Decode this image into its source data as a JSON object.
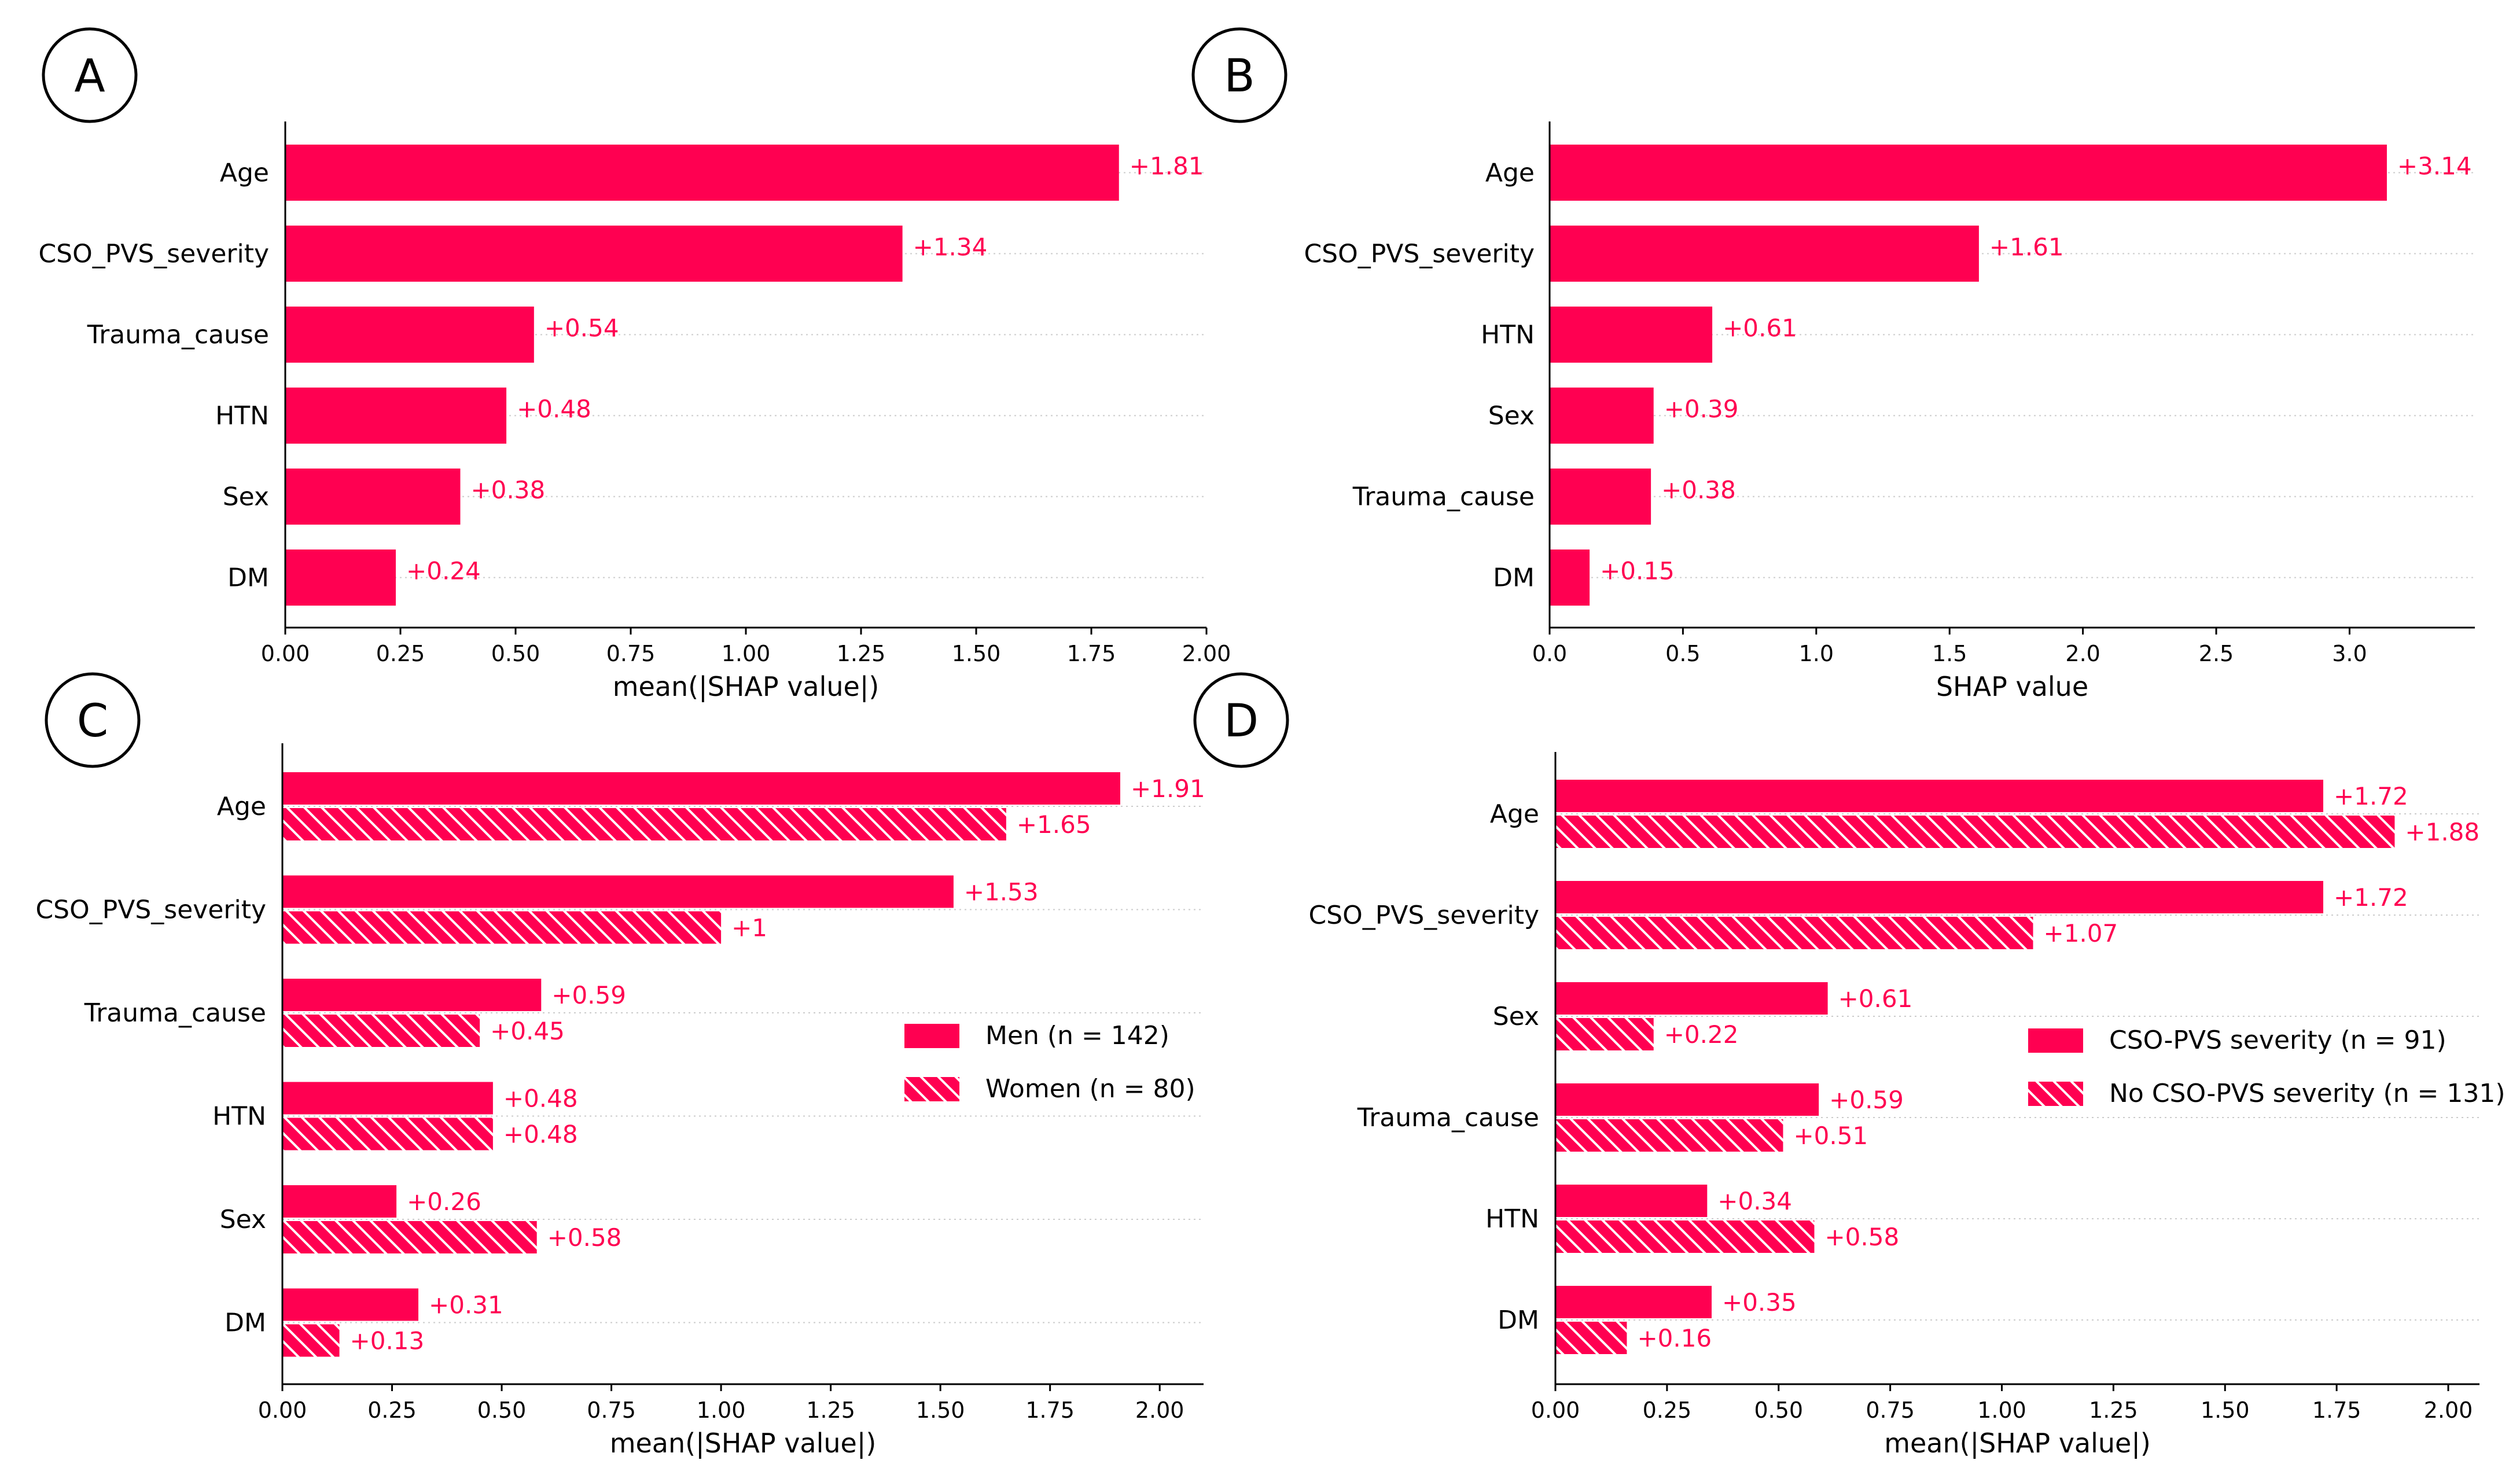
{
  "colors": {
    "bar": "#ff0051",
    "text": "#000000",
    "value_label": "#ff0051",
    "grid": "#cccccc"
  },
  "chart_data": [
    {
      "panel": "A",
      "type": "bar",
      "orientation": "horizontal",
      "categories": [
        "Age",
        "CSO_PVS_severity",
        "Trauma_cause",
        "HTN",
        "Sex",
        "DM"
      ],
      "values": [
        1.81,
        1.34,
        0.54,
        0.48,
        0.38,
        0.24
      ],
      "labels": [
        "+1.81",
        "+1.34",
        "+0.54",
        "+0.48",
        "+0.38",
        "+0.24"
      ],
      "xlabel": "mean(|SHAP value|)",
      "xlim": [
        0,
        2.0
      ],
      "xticks": [
        "0.00",
        "0.25",
        "0.50",
        "0.75",
        "1.00",
        "1.25",
        "1.50",
        "1.75",
        "2.00"
      ],
      "xtick_values": [
        0,
        0.25,
        0.5,
        0.75,
        1.0,
        1.25,
        1.5,
        1.75,
        2.0
      ]
    },
    {
      "panel": "B",
      "type": "bar",
      "orientation": "horizontal",
      "categories": [
        "Age",
        "CSO_PVS_severity",
        "HTN",
        "Sex",
        "Trauma_cause",
        "DM"
      ],
      "values": [
        3.14,
        1.61,
        0.61,
        0.39,
        0.38,
        0.15
      ],
      "labels": [
        "+3.14",
        "+1.61",
        "+0.61",
        "+0.39",
        "+0.38",
        "+0.15"
      ],
      "xlabel": "SHAP value",
      "xlim": [
        0,
        3.47
      ],
      "xticks": [
        "0.0",
        "0.5",
        "1.0",
        "1.5",
        "2.0",
        "2.5",
        "3.0"
      ],
      "xtick_values": [
        0,
        0.5,
        1.0,
        1.5,
        2.0,
        2.5,
        3.0
      ]
    },
    {
      "panel": "C",
      "type": "bar",
      "orientation": "horizontal",
      "categories": [
        "Age",
        "CSO_PVS_severity",
        "Trauma_cause",
        "HTN",
        "Sex",
        "DM"
      ],
      "series": [
        {
          "name": "Men (n = 142)",
          "pattern": "solid",
          "values": [
            1.91,
            1.53,
            0.59,
            0.48,
            0.26,
            0.31
          ],
          "labels": [
            "+1.91",
            "+1.53",
            "+0.59",
            "+0.48",
            "+0.26",
            "+0.31"
          ]
        },
        {
          "name": "Women (n = 80)",
          "pattern": "hatched",
          "values": [
            1.65,
            1.0,
            0.45,
            0.48,
            0.58,
            0.13
          ],
          "labels": [
            "+1.65",
            "+1",
            "+0.45",
            "+0.48",
            "+0.58",
            "+0.13"
          ]
        }
      ],
      "xlabel": "mean(|SHAP value|)",
      "xlim": [
        0,
        2.1
      ],
      "xticks": [
        "0.00",
        "0.25",
        "0.50",
        "0.75",
        "1.00",
        "1.25",
        "1.50",
        "1.75",
        "2.00"
      ],
      "xtick_values": [
        0,
        0.25,
        0.5,
        0.75,
        1.0,
        1.25,
        1.5,
        1.75,
        2.0
      ],
      "legend": "center-right"
    },
    {
      "panel": "D",
      "type": "bar",
      "orientation": "horizontal",
      "categories": [
        "Age",
        "CSO_PVS_severity",
        "Sex",
        "Trauma_cause",
        "HTN",
        "DM"
      ],
      "series": [
        {
          "name": "CSO-PVS severity (n = 91)",
          "pattern": "solid",
          "values": [
            1.72,
            1.72,
            0.61,
            0.59,
            0.34,
            0.35
          ],
          "labels": [
            "+1.72",
            "+1.72",
            "+0.61",
            "+0.59",
            "+0.34",
            "+0.35"
          ]
        },
        {
          "name": "No CSO-PVS severity (n = 131)",
          "pattern": "hatched",
          "values": [
            1.88,
            1.07,
            0.22,
            0.51,
            0.58,
            0.16
          ],
          "labels": [
            "+1.88",
            "+1.07",
            "+0.22",
            "+0.51",
            "+0.58",
            "+0.16"
          ]
        }
      ],
      "xlabel": "mean(|SHAP value|)",
      "xlim": [
        0,
        2.07
      ],
      "xticks": [
        "0.00",
        "0.25",
        "0.50",
        "0.75",
        "1.00",
        "1.25",
        "1.50",
        "1.75",
        "2.00"
      ],
      "xtick_values": [
        0,
        0.25,
        0.5,
        0.75,
        1.0,
        1.25,
        1.5,
        1.75,
        2.0
      ],
      "legend": "center-right"
    }
  ]
}
